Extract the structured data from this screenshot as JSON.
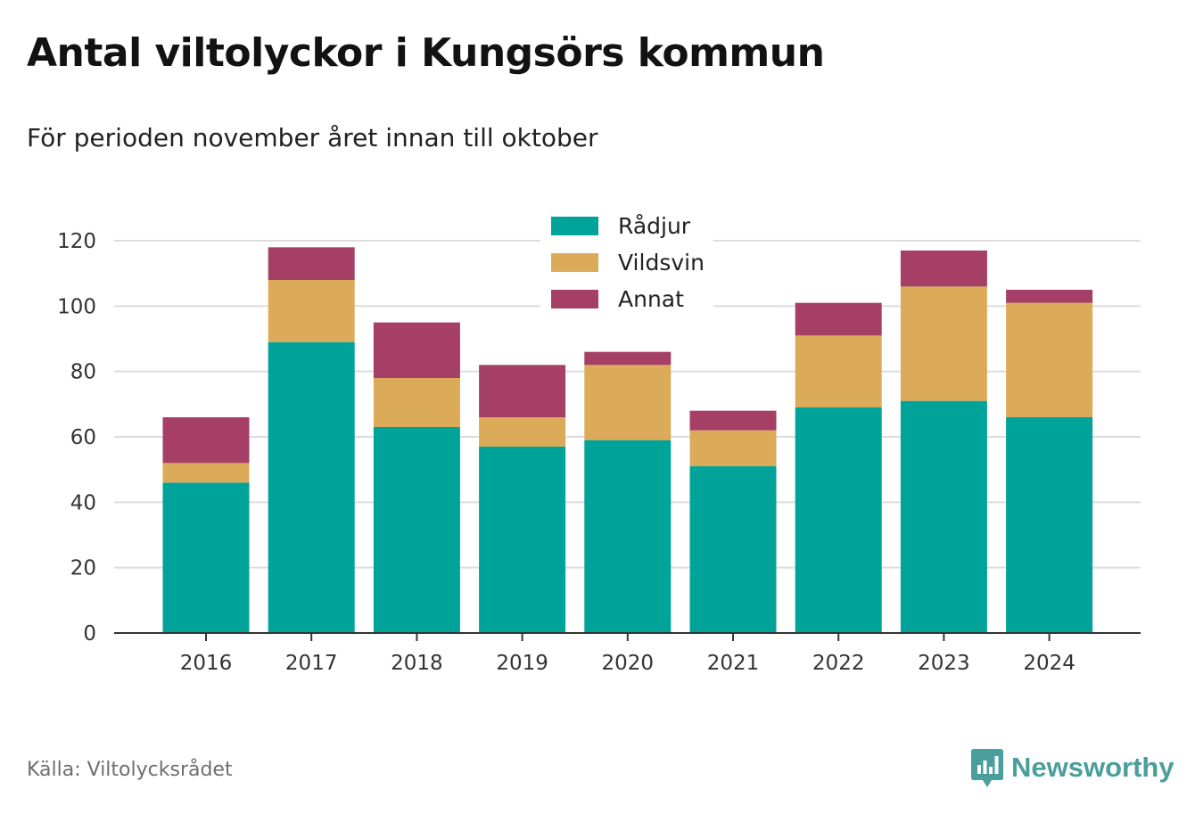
{
  "title": "Antal viltolyckor i Kungsörs kommun",
  "subtitle": "För perioden november året innan till oktober",
  "source": "Källa: Viltolycksrådet",
  "logo_text": "Newsworthy",
  "colors": {
    "Rådjur": "#00a39a",
    "Vildsvin": "#dbab5a",
    "Annat": "#a53f65",
    "grid": "#dddddd",
    "axis": "#333333",
    "logo": "#4a9e9b"
  },
  "chart_data": {
    "type": "bar",
    "stacked": true,
    "categories": [
      "2016",
      "2017",
      "2018",
      "2019",
      "2020",
      "2021",
      "2022",
      "2023",
      "2024"
    ],
    "series": [
      {
        "name": "Rådjur",
        "values": [
          46,
          89,
          63,
          57,
          59,
          51,
          69,
          71,
          66
        ]
      },
      {
        "name": "Vildsvin",
        "values": [
          6,
          19,
          15,
          9,
          23,
          11,
          22,
          35,
          35
        ]
      },
      {
        "name": "Annat",
        "values": [
          14,
          10,
          17,
          16,
          4,
          6,
          10,
          11,
          4
        ]
      }
    ],
    "ylim": [
      0,
      120
    ],
    "yticks": [
      0,
      20,
      40,
      60,
      80,
      100,
      120
    ],
    "xlabel": "",
    "ylabel": "",
    "grid": true,
    "legend": "top-center"
  }
}
